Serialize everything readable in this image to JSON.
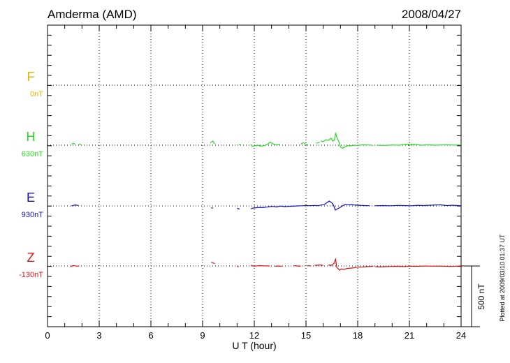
{
  "header": {
    "station": "Amderma (AMD)",
    "date": "2008/04/27"
  },
  "footer": {
    "plotted": "Plotted at 2009/03/10 01:37 UT",
    "scale_label": "500 nT"
  },
  "chart_data": {
    "type": "line",
    "title": "Amderma (AMD)",
    "date": "2008/04/27",
    "xlabel": "U T (hour)",
    "xlim": [
      0,
      24
    ],
    "xticks": [
      0,
      3,
      6,
      9,
      12,
      15,
      18,
      21,
      24
    ],
    "grid": true,
    "scale_bar_nT": 500,
    "series": [
      {
        "name": "F",
        "baseline_label": "0nT",
        "color": "#f0b000",
        "segments": []
      },
      {
        "name": "H",
        "baseline_label": "630nT",
        "color": "#22dd22",
        "segments": [
          [
            [
              1.4,
              -10
            ],
            [
              1.5,
              -15
            ],
            [
              1.6,
              -8
            ]
          ],
          [
            [
              1.8,
              -5
            ],
            [
              1.95,
              -8
            ]
          ],
          [
            [
              9.45,
              -20
            ],
            [
              9.6,
              -35
            ],
            [
              9.7,
              -10
            ]
          ],
          [
            [
              11.1,
              -5
            ],
            [
              11.2,
              -3
            ]
          ],
          [
            [
              11.8,
              -5
            ],
            [
              11.9,
              10
            ],
            [
              12.0,
              5
            ],
            [
              12.2,
              0
            ],
            [
              12.4,
              8
            ],
            [
              12.6,
              2
            ],
            [
              12.8,
              -10
            ],
            [
              12.9,
              -25
            ],
            [
              13.0,
              -20
            ],
            [
              13.1,
              -8
            ],
            [
              13.3,
              -2
            ],
            [
              13.5,
              -5
            ]
          ],
          [
            [
              14.7,
              -10
            ],
            [
              14.85,
              -20
            ],
            [
              14.95,
              -12
            ],
            [
              15.1,
              -3
            ]
          ],
          [
            [
              15.6,
              -18
            ],
            [
              15.8,
              -25
            ]
          ],
          [
            [
              15.85,
              -35
            ],
            [
              16.0,
              -30
            ],
            [
              16.15,
              -45
            ],
            [
              16.3,
              -40
            ],
            [
              16.45,
              -58
            ],
            [
              16.55,
              -35
            ],
            [
              16.65,
              -40
            ],
            [
              16.72,
              -100
            ],
            [
              16.8,
              -60
            ],
            [
              16.9,
              -30
            ],
            [
              17.0,
              15
            ],
            [
              17.1,
              25
            ],
            [
              17.25,
              15
            ],
            [
              17.4,
              5
            ],
            [
              17.6,
              5
            ],
            [
              17.8,
              0
            ],
            [
              18.0,
              2
            ],
            [
              18.3,
              -3
            ],
            [
              18.6,
              -2
            ],
            [
              18.9,
              1
            ]
          ],
          [
            [
              19.1,
              0
            ],
            [
              19.5,
              2
            ],
            [
              19.8,
              0
            ],
            [
              20.0,
              -2
            ],
            [
              20.4,
              0
            ],
            [
              20.7,
              -5
            ],
            [
              21.0,
              -8
            ],
            [
              21.4,
              -5
            ],
            [
              21.7,
              0
            ],
            [
              22.1,
              -3
            ],
            [
              22.5,
              0
            ],
            [
              22.8,
              -2
            ],
            [
              23.2,
              -3
            ],
            [
              23.6,
              -1
            ],
            [
              24.0,
              -2
            ]
          ]
        ]
      },
      {
        "name": "E",
        "baseline_label": "930nT",
        "color": "#1010cc",
        "segments": [
          [
            [
              1.4,
              0
            ],
            [
              1.6,
              -8
            ],
            [
              1.8,
              -4
            ]
          ],
          [
            [
              9.5,
              15
            ],
            [
              9.6,
              18
            ]
          ],
          [
            [
              11.0,
              20
            ],
            [
              11.15,
              25
            ]
          ],
          [
            [
              11.8,
              25
            ],
            [
              11.9,
              18
            ],
            [
              12.1,
              15
            ],
            [
              12.3,
              12
            ],
            [
              12.5,
              14
            ],
            [
              12.7,
              10
            ],
            [
              12.9,
              6
            ],
            [
              13.1,
              4
            ],
            [
              13.3,
              8
            ],
            [
              13.5,
              2
            ],
            [
              13.8,
              5
            ],
            [
              14.1,
              3
            ],
            [
              14.5,
              0
            ],
            [
              14.8,
              -2
            ],
            [
              15.0,
              -4
            ],
            [
              15.2,
              -2
            ],
            [
              15.5,
              -4
            ],
            [
              15.7,
              -2
            ],
            [
              15.9,
              -8
            ],
            [
              16.1,
              -15
            ],
            [
              16.25,
              -30
            ],
            [
              16.35,
              -40
            ],
            [
              16.5,
              -25
            ],
            [
              16.6,
              -5
            ],
            [
              16.7,
              35
            ],
            [
              16.8,
              25
            ],
            [
              16.95,
              15
            ],
            [
              17.1,
              0
            ],
            [
              17.3,
              -15
            ],
            [
              17.45,
              -10
            ],
            [
              17.6,
              -12
            ],
            [
              17.8,
              -8
            ],
            [
              18.1,
              -5
            ],
            [
              18.4,
              -3
            ],
            [
              18.7,
              -2
            ]
          ],
          [
            [
              19.0,
              -2
            ],
            [
              19.5,
              -3
            ],
            [
              19.9,
              -1
            ],
            [
              20.3,
              -4
            ],
            [
              20.7,
              -3
            ],
            [
              21.1,
              -1
            ],
            [
              21.5,
              -5
            ],
            [
              21.8,
              -3
            ],
            [
              22.2,
              -6
            ],
            [
              22.5,
              -8
            ],
            [
              22.8,
              -10
            ],
            [
              23.0,
              -6
            ],
            [
              23.2,
              -3
            ],
            [
              23.5,
              -6
            ],
            [
              23.8,
              -3
            ],
            [
              24.0,
              -1
            ]
          ]
        ]
      },
      {
        "name": "Z",
        "baseline_label": "-130nT",
        "color": "#dd1111",
        "segments": [
          [
            [
              1.35,
              5
            ],
            [
              1.5,
              -4
            ],
            [
              1.7,
              2
            ],
            [
              1.85,
              0
            ]
          ],
          [
            [
              9.5,
              -30
            ],
            [
              9.7,
              -20
            ]
          ],
          [
            [
              11.0,
              4
            ],
            [
              11.1,
              6
            ]
          ],
          [
            [
              11.8,
              -5
            ],
            [
              12.0,
              2
            ],
            [
              12.3,
              -3
            ],
            [
              12.6,
              -1
            ],
            [
              12.9,
              0
            ]
          ],
          [
            [
              13.2,
              3
            ],
            [
              13.4,
              0
            ],
            [
              13.6,
              3
            ]
          ],
          [
            [
              14.3,
              -3
            ],
            [
              14.5,
              0
            ],
            [
              14.7,
              3
            ]
          ],
          [
            [
              15.1,
              -4
            ],
            [
              15.3,
              0
            ]
          ],
          [
            [
              15.5,
              -5
            ],
            [
              15.8,
              -8
            ],
            [
              16.0,
              -5
            ]
          ],
          [
            [
              16.3,
              -8
            ],
            [
              16.5,
              -6
            ],
            [
              16.65,
              -25
            ],
            [
              16.72,
              -60
            ],
            [
              16.78,
              10
            ],
            [
              16.85,
              20
            ],
            [
              16.95,
              35
            ],
            [
              17.05,
              25
            ],
            [
              17.2,
              28
            ],
            [
              17.4,
              20
            ],
            [
              17.6,
              18
            ],
            [
              17.8,
              15
            ],
            [
              18.0,
              10
            ],
            [
              18.3,
              8
            ],
            [
              18.6,
              5
            ],
            [
              18.9,
              3
            ]
          ],
          [
            [
              19.0,
              5
            ],
            [
              19.3,
              8
            ],
            [
              19.6,
              6
            ],
            [
              19.9,
              4
            ],
            [
              20.3,
              3
            ],
            [
              20.7,
              5
            ],
            [
              21.1,
              2
            ],
            [
              21.5,
              3
            ],
            [
              21.9,
              0
            ],
            [
              22.3,
              2
            ],
            [
              22.7,
              1
            ],
            [
              23.1,
              3
            ],
            [
              23.5,
              4
            ],
            [
              23.8,
              1
            ],
            [
              24.0,
              0
            ]
          ]
        ]
      }
    ]
  }
}
